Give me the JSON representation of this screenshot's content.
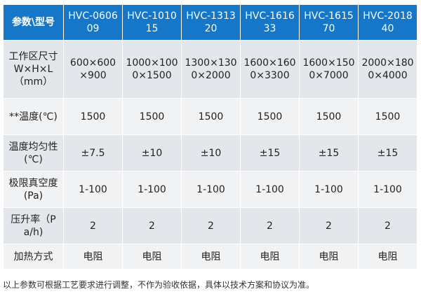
{
  "table": {
    "corner": "参数\\型号",
    "models": [
      "HVC-060609",
      "HVC-101015",
      "HVC-131320",
      "HVC-161633",
      "HVC-161570",
      "HVC-201840"
    ],
    "rows": [
      {
        "label": "工作区尺寸W×H×L（mm）",
        "values": [
          "600×600×900",
          "1000×1000×1500",
          "1300×1300×2000",
          "1600×1600×3300",
          "1600×1500×7000",
          "2000×1800×4000"
        ]
      },
      {
        "label": "**温度(℃)",
        "values": [
          "1500",
          "1500",
          "1500",
          "1500",
          "1500",
          "1500"
        ]
      },
      {
        "label": "温度均匀性(℃)",
        "values": [
          "±7.5",
          "±10",
          "±10",
          "±15",
          "±15",
          "±15"
        ]
      },
      {
        "label": "极限真空度(Pa)",
        "values": [
          "1-100",
          "1-100",
          "1-100",
          "1-100",
          "1-100",
          "1-100"
        ]
      },
      {
        "label": "压升率（Pa/h)",
        "values": [
          "2",
          "2",
          "2",
          "2",
          "2",
          "2"
        ]
      },
      {
        "label": "加热方式",
        "values": [
          "电阻",
          "电阻",
          "电阻",
          "电阻",
          "电阻",
          "电阻"
        ]
      }
    ]
  },
  "note": "以上参数可根据工艺要求进行调整，不作为验收依据，具体以技术方案和协议为准。"
}
